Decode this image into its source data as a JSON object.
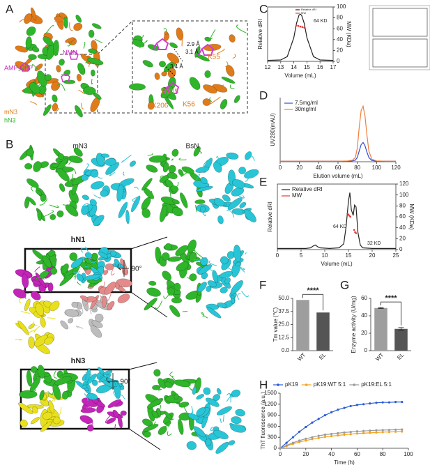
{
  "figure": {
    "panel_labels": [
      "A",
      "B",
      "C",
      "D",
      "E",
      "F",
      "G",
      "H"
    ],
    "panel_a": {
      "labels": [
        "NMN",
        "AMP-CPP",
        "mN3",
        "hN3",
        "2.9 Å",
        "3.1 Å",
        "3.4 Å",
        "K55",
        "R205",
        "K56",
        "K206"
      ]
    },
    "panel_b": {
      "labels": [
        "mN3",
        "BsN",
        "hN1",
        "90°",
        "hN3",
        "90°"
      ]
    }
  },
  "chart_data": [
    {
      "type": "line",
      "xlabel": "Volume (mL)",
      "ylabel": "Relative dRI",
      "y2label": "MW (KDa)",
      "x": [
        12,
        13,
        13.5,
        14,
        14.2,
        14.4,
        14.5,
        14.6,
        14.8,
        15,
        15.5,
        16,
        17
      ],
      "xlim": [
        12,
        17
      ],
      "xticks": [
        12,
        13,
        14,
        15,
        16,
        17
      ],
      "ylim": [
        0,
        1.15
      ],
      "y2lim": [
        0,
        100
      ],
      "y2ticks": [
        0,
        20,
        40,
        60,
        80,
        100
      ],
      "frame": true,
      "legend": "upper left",
      "annotations": [
        "64 KD"
      ],
      "series": [
        {
          "name": "Relative dRI",
          "color": "#222222",
          "values": [
            0.02,
            0.03,
            0.1,
            0.5,
            0.8,
            0.98,
            1.0,
            0.97,
            0.8,
            0.5,
            0.1,
            0.03,
            0.02
          ]
        },
        {
          "name": "MW",
          "color": "#e53935",
          "axis": "y2",
          "style": "markers",
          "x": [
            14.2,
            14.35,
            14.5,
            14.65,
            14.8
          ],
          "values": [
            66,
            65,
            64,
            63,
            62
          ]
        }
      ]
    },
    {
      "type": "line",
      "xlabel": "Elution volume (mL)",
      "ylabel": "UV280(mAU)",
      "x": [
        0,
        20,
        40,
        60,
        70,
        75,
        78,
        80,
        82,
        84,
        86,
        88,
        90,
        92,
        95,
        100,
        110,
        120
      ],
      "xlim": [
        0,
        120
      ],
      "xticks": [
        0,
        20,
        40,
        60,
        80,
        100,
        120
      ],
      "ylim": [
        0,
        600
      ],
      "legend": "upper left",
      "series": [
        {
          "name": "7.5mg/ml",
          "color": "#2e4fd6",
          "values": [
            5,
            5,
            5,
            5,
            6,
            8,
            15,
            40,
            100,
            160,
            180,
            150,
            90,
            40,
            12,
            6,
            5,
            5
          ]
        },
        {
          "name": "30mg/ml",
          "color": "#f07f3c",
          "values": [
            5,
            5,
            5,
            5,
            8,
            15,
            40,
            130,
            320,
            480,
            520,
            430,
            250,
            100,
            25,
            8,
            5,
            5
          ]
        }
      ]
    },
    {
      "type": "line",
      "xlabel": "Volume (mL)",
      "ylabel": "Relative dRI",
      "y2label": "MW (KDa)",
      "x": [
        0,
        2,
        4,
        6,
        7,
        7.5,
        8,
        8.5,
        9,
        11,
        13,
        14,
        14.5,
        15,
        15.3,
        15.6,
        16,
        16.3,
        16.6,
        17,
        17.5,
        18,
        20,
        22,
        25
      ],
      "xlim": [
        0,
        25
      ],
      "xticks": [
        0,
        5,
        10,
        15,
        20,
        25
      ],
      "ylim": [
        0,
        1.15
      ],
      "y2lim": [
        0,
        120
      ],
      "y2ticks": [
        0,
        20,
        40,
        60,
        80,
        100,
        120
      ],
      "frame": true,
      "legend": "upper left",
      "annotations": [
        "64 KD",
        "32 KD"
      ],
      "series": [
        {
          "name": "Relative dRI",
          "color": "#222222",
          "values": [
            0.02,
            0.02,
            0.02,
            0.02,
            0.03,
            0.06,
            0.08,
            0.05,
            0.03,
            0.02,
            0.03,
            0.1,
            0.4,
            0.85,
            1.0,
            0.7,
            0.6,
            0.78,
            0.75,
            0.3,
            0.08,
            0.03,
            0.02,
            0.02,
            0.02
          ]
        },
        {
          "name": "MW",
          "color": "#e53935",
          "axis": "y2",
          "style": "markers",
          "x": [
            14.8,
            15.0,
            15.2,
            15.4,
            16.2,
            16.4,
            16.6
          ],
          "values": [
            66,
            64,
            62,
            60,
            36,
            32,
            30
          ]
        }
      ]
    },
    {
      "type": "bar",
      "ylabel": "Tm value (℃)",
      "categories": [
        "WT",
        "EL"
      ],
      "values": [
        48.5,
        36.5
      ],
      "colors": [
        "#9e9e9e",
        "#555555"
      ],
      "ylim": [
        0,
        50
      ],
      "yticks": [
        {
          "value": 0,
          "label": "0.0"
        },
        12.5,
        {
          "value": 25,
          "label": "25.0"
        },
        37.5,
        {
          "value": 50,
          "label": "50.0"
        }
      ],
      "significance": "****"
    },
    {
      "type": "bar",
      "ylabel": "Enzyme activity (U/mg)",
      "categories": [
        "WT",
        "EL"
      ],
      "values": [
        49,
        25
      ],
      "errors": [
        0.5,
        1.5
      ],
      "colors": [
        "#9e9e9e",
        "#555555"
      ],
      "ylim": [
        0,
        60
      ],
      "yticks": [
        0,
        20,
        40,
        60
      ],
      "significance": "****"
    },
    {
      "type": "line",
      "xlabel": "Time (h)",
      "ylabel": "ThT fluorescence (a.u.)",
      "x": [
        0,
        5,
        10,
        15,
        20,
        25,
        30,
        35,
        40,
        45,
        50,
        55,
        60,
        65,
        70,
        75,
        80,
        85,
        90,
        95
      ],
      "xlim": [
        0,
        100
      ],
      "xticks": [
        0,
        20,
        40,
        60,
        80,
        100
      ],
      "ylim": [
        0,
        1500
      ],
      "yticks": [
        0,
        300,
        600,
        900,
        1200,
        1500
      ],
      "legend": "top",
      "series": [
        {
          "name": "pK19",
          "color": "#2a5bd7",
          "style": "line-markers",
          "values": [
            0,
            150,
            300,
            450,
            580,
            700,
            800,
            900,
            980,
            1050,
            1100,
            1150,
            1180,
            1200,
            1220,
            1240,
            1250,
            1250,
            1260,
            1260
          ]
        },
        {
          "name": "pK19:WT 5:1",
          "color": "#f5a21b",
          "style": "line-markers",
          "values": [
            0,
            60,
            120,
            170,
            210,
            250,
            280,
            310,
            330,
            350,
            370,
            385,
            400,
            410,
            420,
            430,
            440,
            445,
            450,
            455
          ]
        },
        {
          "name": "pK19:EL 5:1",
          "color": "#9a9a9a",
          "style": "line-markers",
          "values": [
            0,
            80,
            150,
            210,
            260,
            300,
            340,
            370,
            390,
            410,
            430,
            445,
            460,
            470,
            480,
            490,
            495,
            500,
            505,
            510
          ]
        }
      ]
    }
  ]
}
